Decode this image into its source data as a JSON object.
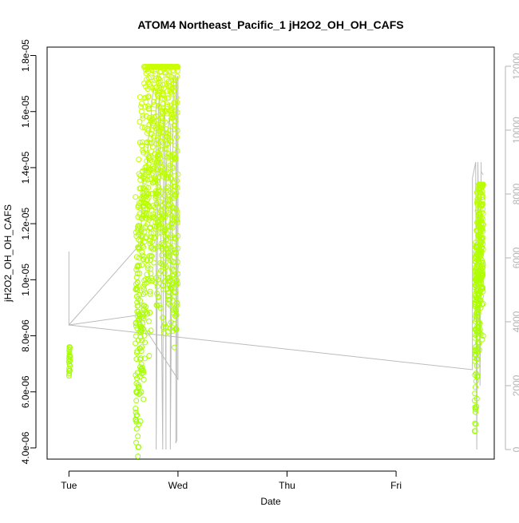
{
  "chart_data": {
    "type": "scatter",
    "title": "ATOM4 Northeast_Pacific_1 jH2O2_OH_OH_CAFS",
    "xlabel": "Date",
    "ylabel": "jH2O2_OH_OH_CAFS",
    "x_unit": "days since Tue 00:00",
    "xlim": [
      -0.2,
      3.9
    ],
    "ylim": [
      3.6e-06,
      1.83e-05
    ],
    "x_ticks": [
      {
        "value": 0,
        "label": "Tue"
      },
      {
        "value": 1,
        "label": "Wed"
      },
      {
        "value": 2,
        "label": "Thu"
      },
      {
        "value": 3,
        "label": "Fri"
      }
    ],
    "y_ticks": [
      {
        "value": 4e-06,
        "label": "4.0e-06"
      },
      {
        "value": 6e-06,
        "label": "6.0e-06"
      },
      {
        "value": 8e-06,
        "label": "8.0e-06"
      },
      {
        "value": 1e-05,
        "label": "1.0e-05"
      },
      {
        "value": 1.2e-05,
        "label": "1.2e-05"
      },
      {
        "value": 1.4e-05,
        "label": "1.4e-05"
      },
      {
        "value": 1.6e-05,
        "label": "1.6e-05"
      },
      {
        "value": 1.8e-05,
        "label": "1.8e-05"
      }
    ],
    "y2_ticks": [
      {
        "value": 0,
        "label": "0"
      },
      {
        "value": 2000,
        "label": "2000"
      },
      {
        "value": 4000,
        "label": "4000"
      },
      {
        "value": 6000,
        "label": "6000"
      },
      {
        "value": 8000,
        "label": "8000"
      },
      {
        "value": 10000,
        "label": "10000"
      },
      {
        "value": 12000,
        "label": "12000"
      }
    ],
    "y2lim": [
      -300,
      12600
    ],
    "grid": false,
    "legend": "none",
    "colors": {
      "points_low": "#ccff00",
      "points_high": "#99ff00",
      "altitude_line": "#bbbbbb",
      "axis": "#000000",
      "right_axis": "#b3b3b3"
    },
    "series": [
      {
        "type": "scatter",
        "segments": [
          {
            "x_start": 0.0,
            "x_end": 0.01,
            "y_min": 6.3e-06,
            "y_max": 7.6e-06,
            "n": 24,
            "peak_frac": 0.5
          },
          {
            "x_start": 0.61,
            "x_end": 1.0,
            "y_min": 3.7e-06,
            "y_max": 1.76e-05,
            "n": 900,
            "peak_frac": 0.45
          },
          {
            "x_start": 3.72,
            "x_end": 3.8,
            "y_min": 4.6e-06,
            "y_max": 1.34e-05,
            "n": 330,
            "peak_frac": 0.7
          }
        ]
      },
      {
        "type": "line",
        "axis": "right",
        "x": [
          0.0,
          0.0,
          0.62,
          0.63,
          0.66,
          0.67,
          0.69,
          0.7,
          0.71,
          0.72,
          0.73,
          0.75,
          0.76,
          0.78,
          0.8,
          0.8,
          0.82,
          0.83,
          0.86,
          0.87,
          0.88,
          0.89,
          0.89,
          0.9,
          0.92,
          0.93,
          0.93,
          0.95,
          0.96,
          0.98,
          0.98,
          0.99,
          0.99,
          1.0,
          1.0,
          0.62,
          0.0,
          3.7,
          3.7,
          3.73,
          3.73,
          3.74,
          3.75,
          3.75,
          3.76,
          3.77,
          3.78,
          3.78,
          3.8
        ],
        "y": [
          6200,
          3900,
          6300,
          6350,
          6400,
          8000,
          8700,
          8800,
          8700,
          9100,
          9800,
          10200,
          10900,
          11300,
          11200,
          0,
          10600,
          11100,
          0,
          10400,
          10900,
          0,
          8000,
          9600,
          10400,
          10100,
          0,
          8800,
          11700,
          11700,
          200,
          300,
          11600,
          11700,
          2200,
          4200,
          3900,
          2500,
          8500,
          9000,
          8700,
          0,
          7900,
          9000,
          6000,
          2000,
          9000,
          8700,
          8600
        ]
      }
    ]
  }
}
